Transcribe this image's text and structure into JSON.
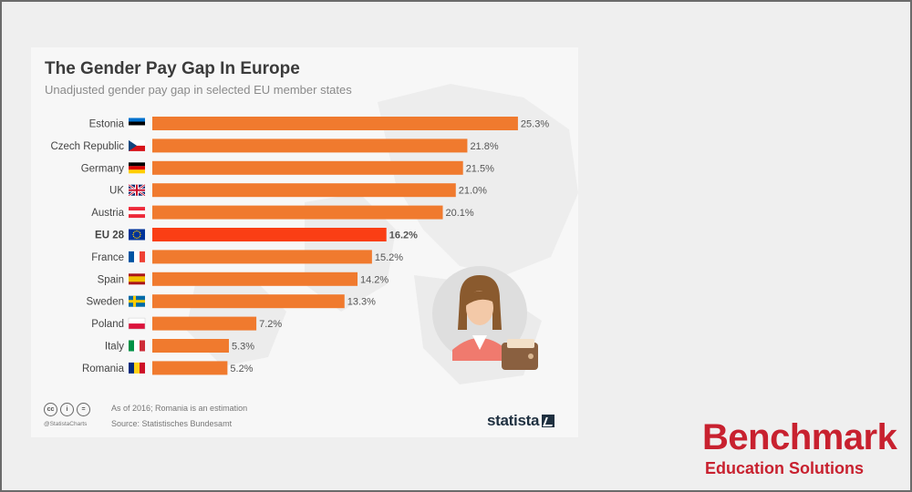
{
  "title": "The Gender Pay Gap In Europe",
  "subtitle": "Unadjusted gender pay gap in selected EU member states",
  "footer": {
    "note": "As of 2016; Romania is an estimation",
    "source": "Source: Statistisches Bundesamt",
    "credit": "@StatistaCharts",
    "cc_icons": [
      "cc",
      "i",
      "="
    ],
    "brand": "statista"
  },
  "branding": {
    "name": "Benchmark",
    "tagline": "Education Solutions",
    "color": "#c8212f"
  },
  "chart_data": {
    "type": "bar",
    "orientation": "horizontal",
    "title": "The Gender Pay Gap In Europe",
    "subtitle": "Unadjusted gender pay gap in selected EU member states",
    "categories": [
      "Estonia",
      "Czech Republic",
      "Germany",
      "UK",
      "Austria",
      "EU 28",
      "France",
      "Spain",
      "Sweden",
      "Poland",
      "Italy",
      "Romania"
    ],
    "values": [
      25.3,
      21.8,
      21.5,
      21.0,
      20.1,
      16.2,
      15.2,
      14.2,
      13.3,
      7.2,
      5.3,
      5.2
    ],
    "value_labels": [
      "25.3%",
      "21.8%",
      "21.5%",
      "21.0%",
      "20.1%",
      "16.2%",
      "15.2%",
      "14.2%",
      "13.3%",
      "7.2%",
      "5.3%",
      "5.2%"
    ],
    "flag_icons": [
      "estonia-flag-icon",
      "czech-republic-flag-icon",
      "germany-flag-icon",
      "uk-flag-icon",
      "austria-flag-icon",
      "eu-flag-icon",
      "france-flag-icon",
      "spain-flag-icon",
      "sweden-flag-icon",
      "poland-flag-icon",
      "italy-flag-icon",
      "romania-flag-icon"
    ],
    "highlight": "EU 28",
    "colors": {
      "bar": "#f07a2e",
      "highlight": "#fa3e14"
    },
    "xlim": [
      0,
      26
    ],
    "grid": false,
    "legend": "none"
  }
}
